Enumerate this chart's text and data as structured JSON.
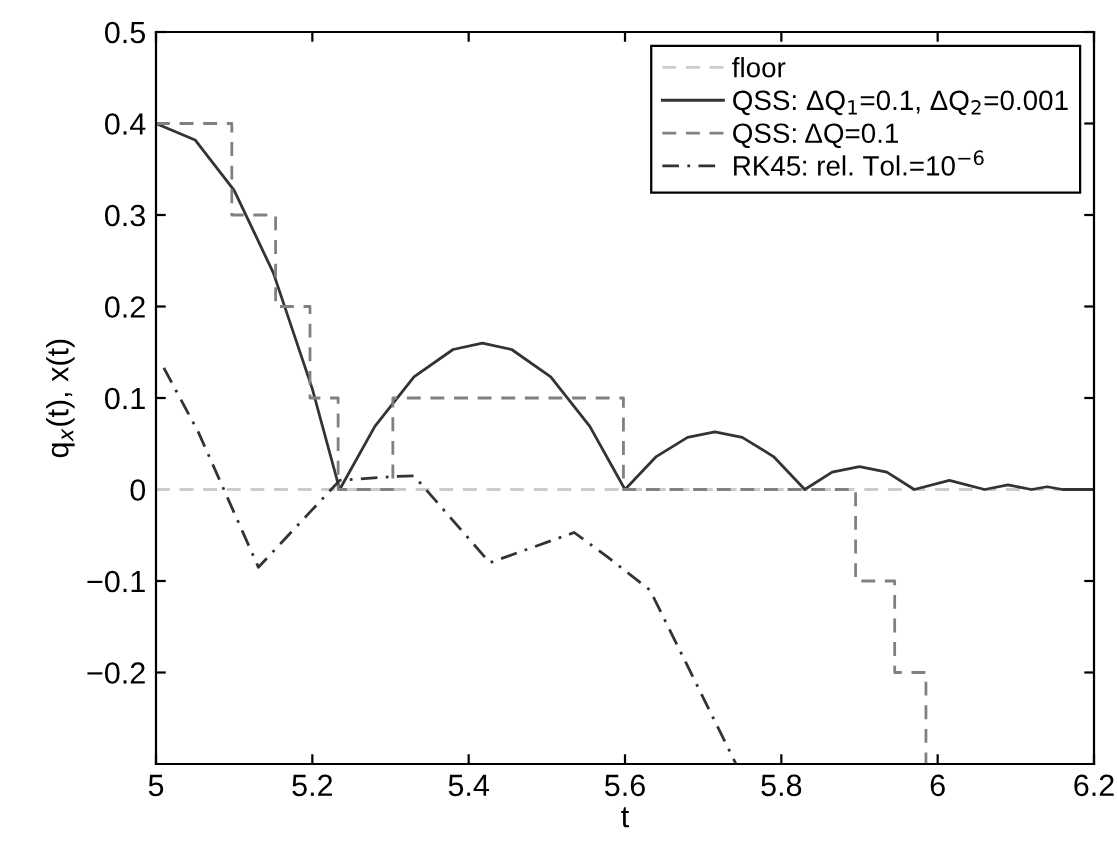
{
  "chart_data": {
    "type": "line",
    "xlabel": "t",
    "ylabel": "q$_{x}$(t), x(t)",
    "xlim": [
      5,
      6.2
    ],
    "ylim": [
      -0.3,
      0.5
    ],
    "xticks": [
      5,
      5.2,
      5.4,
      5.6,
      5.8,
      6,
      6.2
    ],
    "yticks": [
      {
        "value": -0.2,
        "label": "−0.2"
      },
      {
        "value": -0.1,
        "label": "−0.1"
      },
      0,
      0.1,
      0.2,
      0.3,
      0.4,
      0.5
    ],
    "grid": false,
    "legend": "top right",
    "series": [
      {
        "name": "floor",
        "line_style": "dashed",
        "color": "#cccccc",
        "x": [
          5,
          6.2
        ],
        "values": [
          0,
          0
        ]
      },
      {
        "name": "QSS: ΔQ$_{1}$=0.1, ΔQ$_{2}$=0.001",
        "line_style": "solid",
        "color": "#333333",
        "x": [
          5,
          5.05,
          5.1,
          5.15,
          5.2,
          5.235,
          5.28,
          5.33,
          5.38,
          5.4175,
          5.455,
          5.505,
          5.555,
          5.6,
          5.64,
          5.68,
          5.715,
          5.75,
          5.79,
          5.83,
          5.865,
          5.9,
          5.935,
          5.97,
          6.015,
          6.06,
          6.09,
          6.12,
          6.14,
          6.16,
          6.2
        ],
        "values": [
          0.4,
          0.382,
          0.327,
          0.237,
          0.11,
          0,
          0.069,
          0.123,
          0.153,
          0.16,
          0.153,
          0.123,
          0.069,
          0,
          0.036,
          0.057,
          0.063,
          0.057,
          0.036,
          0,
          0.019,
          0.025,
          0.019,
          0,
          0.01,
          0,
          0.005,
          0,
          0.003,
          0,
          0
        ]
      },
      {
        "name": "QSS: ΔQ=0.1",
        "type": "step",
        "line_style": "dashed",
        "color": "#808080",
        "x": [
          5,
          5.097,
          5.153,
          5.197,
          5.233,
          5.303,
          5.598,
          5.895,
          5.945,
          5.985
        ],
        "values": [
          0.4,
          0.3,
          0.2,
          0.1,
          0,
          0.1,
          0,
          -0.1,
          -0.2,
          -0.3
        ]
      },
      {
        "name": "RK45: rel. Tol.=10$^{−6}$",
        "line_style": "dashdot",
        "color": "#333333",
        "x": [
          5.01,
          5.054,
          5.131,
          5.235,
          5.3,
          5.33,
          5.427,
          5.535,
          5.578,
          5.632,
          5.742
        ],
        "values": [
          0.133,
          0.063,
          -0.085,
          0.01,
          0.014,
          0.015,
          -0.08,
          -0.047,
          -0.074,
          -0.11,
          -0.3
        ]
      }
    ]
  }
}
